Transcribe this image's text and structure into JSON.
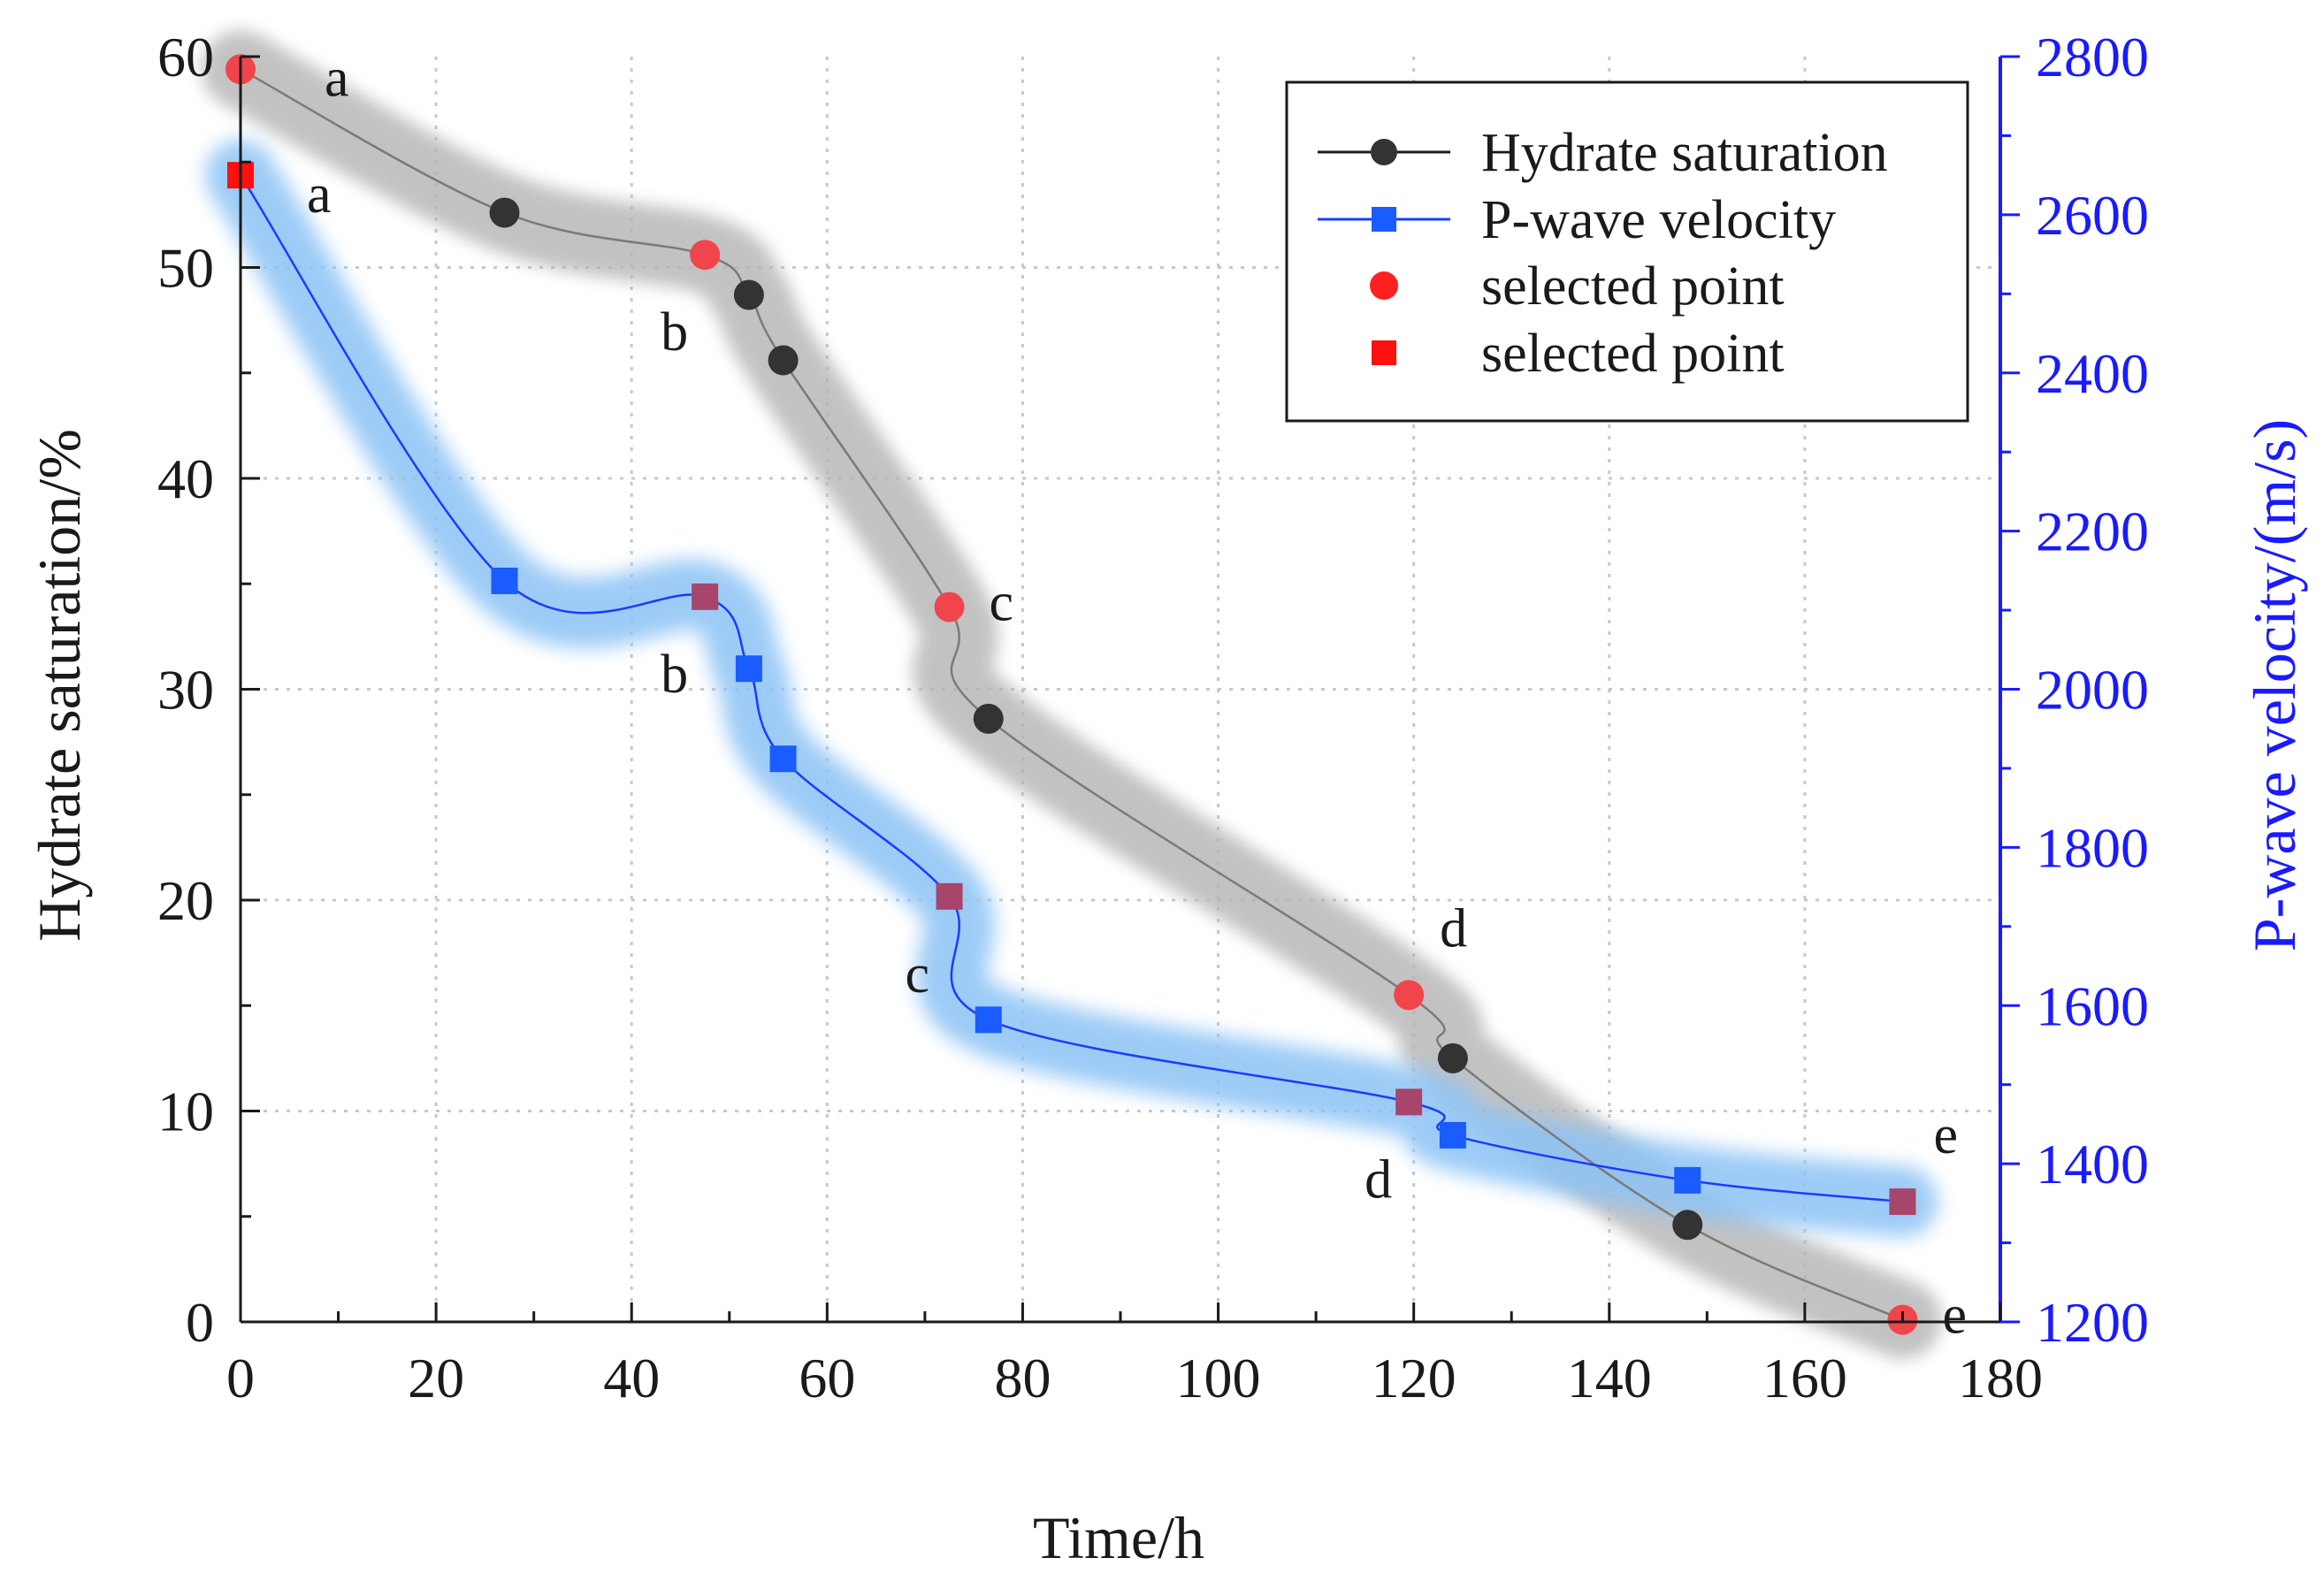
{
  "chart_data": {
    "type": "line",
    "xlabel": "Time/h",
    "ylabel_left": "Hydrate saturation/%",
    "ylabel_right": "P-wave velocity/(m/s)",
    "xlim": [
      0,
      180
    ],
    "ylim_left": [
      0,
      60
    ],
    "ylim_right": [
      1200,
      2800
    ],
    "x_ticks": [
      0,
      20,
      40,
      60,
      80,
      100,
      120,
      140,
      160,
      180
    ],
    "x_tick_labels": [
      "0",
      "20",
      "40",
      "60",
      "80",
      "100",
      "120",
      "140",
      "160",
      "180"
    ],
    "y_left_ticks": [
      0,
      10,
      20,
      30,
      40,
      50,
      60
    ],
    "y_left_tick_labels": [
      "0",
      "10",
      "20",
      "30",
      "40",
      "50",
      "60"
    ],
    "y_right_ticks": [
      1200,
      1400,
      1600,
      1800,
      2000,
      2200,
      2400,
      2600,
      2800
    ],
    "y_right_tick_labels": [
      "1200",
      "1400",
      "1600",
      "1800",
      "2000",
      "2200",
      "2400",
      "2600",
      "2800"
    ],
    "grid": true,
    "legend_position": "top-right",
    "legend": [
      "Hydrate saturation",
      "P-wave velocity",
      "selected point",
      "selected point"
    ],
    "series": [
      {
        "name": "Hydrate saturation",
        "axis": "left",
        "color": "#1a1a1a",
        "band_color": "#b4b4b4",
        "marker": "circle",
        "x": [
          0,
          27,
          47.5,
          52,
          55.5,
          72.5,
          76.5,
          119.5,
          124,
          148,
          170
        ],
        "values": [
          59.4,
          52.6,
          50.6,
          48.7,
          45.6,
          33.9,
          28.6,
          15.5,
          12.5,
          4.6,
          0.1
        ],
        "selected_index": [
          0,
          2,
          5,
          7,
          10
        ],
        "point_labels": [
          {
            "index": 0,
            "text": "a",
            "side": "upper-right"
          },
          {
            "index": 2,
            "text": "b",
            "side": "lower-left"
          },
          {
            "index": 5,
            "text": "c",
            "side": "right"
          },
          {
            "index": 7,
            "text": "d",
            "side": "above"
          },
          {
            "index": 10,
            "text": "e",
            "side": "right"
          }
        ]
      },
      {
        "name": "P-wave velocity",
        "axis": "right",
        "color": "#1a3cff",
        "band_color": "#8cc3f5",
        "marker": "square",
        "x": [
          0,
          27,
          47.5,
          52,
          55.5,
          72.5,
          76.5,
          119.5,
          124,
          148,
          170
        ],
        "values": [
          2650,
          2137,
          2117,
          2026,
          1912,
          1738,
          1582,
          1478,
          1436,
          1379,
          1352
        ],
        "selected_index": [
          0,
          2,
          5,
          7,
          10
        ],
        "point_labels": [
          {
            "index": 0,
            "text": "a",
            "side": "lower-right"
          },
          {
            "index": 2,
            "text": "b",
            "side": "lower-left"
          },
          {
            "index": 5,
            "text": "c",
            "side": "lower-left"
          },
          {
            "index": 7,
            "text": "d",
            "side": "lower-left"
          },
          {
            "index": 10,
            "text": "e",
            "side": "above"
          }
        ]
      }
    ]
  },
  "colors": {
    "axis": "#1a1a1a",
    "right_axis": "#1a1aff",
    "grid": "#c8c8c8",
    "selected_circle": "#f0454a",
    "selected_square_legend": "#ff1010",
    "selected_square_plot": "#a8456a",
    "marker_dark": "#333333",
    "marker_blue": "#1a5cff"
  }
}
